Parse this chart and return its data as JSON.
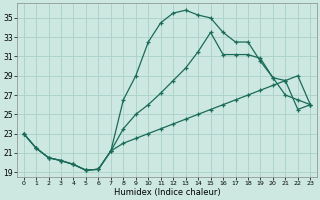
{
  "xlabel": "Humidex (Indice chaleur)",
  "xlim": [
    -0.5,
    23.5
  ],
  "ylim": [
    18.5,
    36.5
  ],
  "yticks": [
    19,
    21,
    23,
    25,
    27,
    29,
    31,
    33,
    35
  ],
  "xticks": [
    0,
    1,
    2,
    3,
    4,
    5,
    6,
    7,
    8,
    9,
    10,
    11,
    12,
    13,
    14,
    15,
    16,
    17,
    18,
    19,
    20,
    21,
    22,
    23
  ],
  "bg_color": "#cce8e0",
  "grid_color": "#afd4cc",
  "line_color": "#1a6b5a",
  "line1_y": [
    23.0,
    21.5,
    20.5,
    20.2,
    19.8,
    19.2,
    19.3,
    21.2,
    26.5,
    29.0,
    32.5,
    34.5,
    35.5,
    35.8,
    35.3,
    35.0,
    33.5,
    32.5,
    32.5,
    30.5,
    28.8,
    27.0,
    26.5,
    26.0
  ],
  "line2_y": [
    23.0,
    21.5,
    20.5,
    20.2,
    19.8,
    19.2,
    19.3,
    21.2,
    23.5,
    25.0,
    26.0,
    27.2,
    28.5,
    29.8,
    31.5,
    33.5,
    31.2,
    31.2,
    31.2,
    30.8,
    28.8,
    28.5,
    29.0,
    26.0
  ],
  "line3_y": [
    23.0,
    21.5,
    20.5,
    20.2,
    19.8,
    19.2,
    19.3,
    21.2,
    22.0,
    22.5,
    23.0,
    23.5,
    24.0,
    24.5,
    25.0,
    25.5,
    26.0,
    26.5,
    27.0,
    27.5,
    28.0,
    28.5,
    25.5,
    26.0
  ]
}
